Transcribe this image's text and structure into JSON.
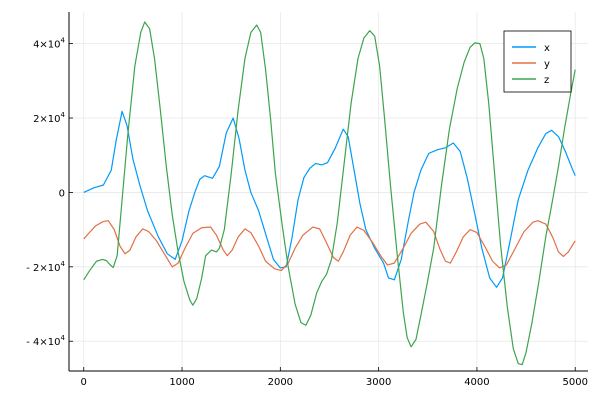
{
  "chart_data": {
    "type": "line",
    "title": "",
    "xlabel": "",
    "ylabel": "",
    "xlim": [
      -150,
      5130
    ],
    "ylim": [
      -48000,
      48500
    ],
    "grid": true,
    "legend_position": "top-right",
    "x_ticks": [
      {
        "value": 0,
        "label": "0"
      },
      {
        "value": 1000,
        "label": "1000"
      },
      {
        "value": 2000,
        "label": "2000"
      },
      {
        "value": 3000,
        "label": "3000"
      },
      {
        "value": 4000,
        "label": "4000"
      },
      {
        "value": 5000,
        "label": "5000"
      }
    ],
    "y_ticks": [
      {
        "value": -40000,
        "base": "- 4×10",
        "exp": "4"
      },
      {
        "value": -20000,
        "base": "- 2×10",
        "exp": "4"
      },
      {
        "value": 0,
        "base": "0",
        "exp": ""
      },
      {
        "value": 20000,
        "base": "2×10",
        "exp": "4"
      },
      {
        "value": 40000,
        "base": "4×10",
        "exp": "4"
      }
    ],
    "series": [
      {
        "name": "x",
        "color": "#009af9",
        "points": [
          [
            0,
            0
          ],
          [
            100,
            1200
          ],
          [
            200,
            2000
          ],
          [
            280,
            6000
          ],
          [
            330,
            14000
          ],
          [
            390,
            21800
          ],
          [
            440,
            18000
          ],
          [
            500,
            9000
          ],
          [
            570,
            2000
          ],
          [
            650,
            -5000
          ],
          [
            760,
            -12000
          ],
          [
            850,
            -16500
          ],
          [
            930,
            -18000
          ],
          [
            1000,
            -13000
          ],
          [
            1070,
            -5000
          ],
          [
            1130,
            0
          ],
          [
            1180,
            3500
          ],
          [
            1230,
            4500
          ],
          [
            1310,
            3800
          ],
          [
            1380,
            7000
          ],
          [
            1450,
            16000
          ],
          [
            1520,
            20000
          ],
          [
            1580,
            14500
          ],
          [
            1640,
            6000
          ],
          [
            1700,
            0
          ],
          [
            1780,
            -5000
          ],
          [
            1860,
            -12000
          ],
          [
            1930,
            -18000
          ],
          [
            2000,
            -20300
          ],
          [
            2060,
            -20000
          ],
          [
            2120,
            -12000
          ],
          [
            2180,
            -2000
          ],
          [
            2240,
            4000
          ],
          [
            2300,
            6500
          ],
          [
            2360,
            7800
          ],
          [
            2420,
            7400
          ],
          [
            2480,
            8000
          ],
          [
            2560,
            12000
          ],
          [
            2640,
            17000
          ],
          [
            2690,
            15000
          ],
          [
            2750,
            6000
          ],
          [
            2810,
            -3000
          ],
          [
            2870,
            -10000
          ],
          [
            2960,
            -15000
          ],
          [
            3050,
            -19000
          ],
          [
            3100,
            -23000
          ],
          [
            3160,
            -23500
          ],
          [
            3230,
            -18000
          ],
          [
            3300,
            -8000
          ],
          [
            3360,
            0
          ],
          [
            3430,
            6000
          ],
          [
            3510,
            10500
          ],
          [
            3600,
            11500
          ],
          [
            3680,
            12000
          ],
          [
            3760,
            13300
          ],
          [
            3830,
            11000
          ],
          [
            3900,
            4000
          ],
          [
            3980,
            -6000
          ],
          [
            4050,
            -15000
          ],
          [
            4130,
            -23000
          ],
          [
            4200,
            -25500
          ],
          [
            4260,
            -23000
          ],
          [
            4330,
            -14000
          ],
          [
            4420,
            -2000
          ],
          [
            4520,
            6000
          ],
          [
            4620,
            12000
          ],
          [
            4700,
            15800
          ],
          [
            4760,
            16700
          ],
          [
            4830,
            15000
          ],
          [
            4900,
            11000
          ],
          [
            4960,
            7000
          ],
          [
            5000,
            4500
          ]
        ]
      },
      {
        "name": "y",
        "color": "#e26f46",
        "points": [
          [
            0,
            -12500
          ],
          [
            50,
            -11000
          ],
          [
            120,
            -9000
          ],
          [
            200,
            -7800
          ],
          [
            250,
            -7600
          ],
          [
            310,
            -10000
          ],
          [
            370,
            -14500
          ],
          [
            420,
            -16500
          ],
          [
            470,
            -15500
          ],
          [
            530,
            -12000
          ],
          [
            600,
            -9800
          ],
          [
            660,
            -10500
          ],
          [
            740,
            -13000
          ],
          [
            820,
            -16500
          ],
          [
            900,
            -20000
          ],
          [
            960,
            -19000
          ],
          [
            1030,
            -15000
          ],
          [
            1110,
            -11000
          ],
          [
            1200,
            -9500
          ],
          [
            1290,
            -9300
          ],
          [
            1350,
            -11500
          ],
          [
            1420,
            -15500
          ],
          [
            1460,
            -17000
          ],
          [
            1510,
            -15500
          ],
          [
            1570,
            -12000
          ],
          [
            1640,
            -9800
          ],
          [
            1700,
            -10800
          ],
          [
            1780,
            -14500
          ],
          [
            1850,
            -18500
          ],
          [
            1940,
            -20500
          ],
          [
            2010,
            -21000
          ],
          [
            2080,
            -19000
          ],
          [
            2150,
            -15000
          ],
          [
            2230,
            -11500
          ],
          [
            2330,
            -9300
          ],
          [
            2400,
            -9800
          ],
          [
            2460,
            -13000
          ],
          [
            2540,
            -17500
          ],
          [
            2590,
            -18500
          ],
          [
            2640,
            -16000
          ],
          [
            2710,
            -11500
          ],
          [
            2780,
            -9300
          ],
          [
            2850,
            -10200
          ],
          [
            2940,
            -13500
          ],
          [
            3020,
            -17000
          ],
          [
            3090,
            -19500
          ],
          [
            3160,
            -19000
          ],
          [
            3250,
            -15000
          ],
          [
            3330,
            -11000
          ],
          [
            3420,
            -8500
          ],
          [
            3480,
            -8000
          ],
          [
            3560,
            -10500
          ],
          [
            3620,
            -15000
          ],
          [
            3680,
            -18500
          ],
          [
            3730,
            -19000
          ],
          [
            3790,
            -16000
          ],
          [
            3860,
            -12000
          ],
          [
            3930,
            -10000
          ],
          [
            4000,
            -10800
          ],
          [
            4080,
            -14500
          ],
          [
            4160,
            -18500
          ],
          [
            4230,
            -20300
          ],
          [
            4300,
            -19500
          ],
          [
            4390,
            -15000
          ],
          [
            4480,
            -10500
          ],
          [
            4570,
            -8000
          ],
          [
            4620,
            -7600
          ],
          [
            4700,
            -8500
          ],
          [
            4770,
            -12000
          ],
          [
            4830,
            -16000
          ],
          [
            4880,
            -17200
          ],
          [
            4930,
            -16000
          ],
          [
            5000,
            -13000
          ]
        ]
      },
      {
        "name": "z",
        "color": "#3da44d",
        "points": [
          [
            0,
            -23500
          ],
          [
            60,
            -21000
          ],
          [
            130,
            -18500
          ],
          [
            190,
            -18000
          ],
          [
            230,
            -18300
          ],
          [
            270,
            -19500
          ],
          [
            300,
            -20200
          ],
          [
            340,
            -17000
          ],
          [
            390,
            -2000
          ],
          [
            450,
            16000
          ],
          [
            520,
            34000
          ],
          [
            580,
            43000
          ],
          [
            620,
            45800
          ],
          [
            670,
            44000
          ],
          [
            720,
            36000
          ],
          [
            780,
            22000
          ],
          [
            840,
            7000
          ],
          [
            900,
            -6000
          ],
          [
            960,
            -16000
          ],
          [
            1020,
            -24000
          ],
          [
            1080,
            -29000
          ],
          [
            1110,
            -30300
          ],
          [
            1150,
            -28500
          ],
          [
            1200,
            -23000
          ],
          [
            1240,
            -17000
          ],
          [
            1300,
            -15500
          ],
          [
            1350,
            -16000
          ],
          [
            1380,
            -15000
          ],
          [
            1430,
            -10000
          ],
          [
            1500,
            5000
          ],
          [
            1570,
            22000
          ],
          [
            1640,
            36000
          ],
          [
            1700,
            43000
          ],
          [
            1760,
            45000
          ],
          [
            1800,
            43000
          ],
          [
            1850,
            33000
          ],
          [
            1900,
            20000
          ],
          [
            1950,
            5000
          ],
          [
            2020,
            -9000
          ],
          [
            2080,
            -20000
          ],
          [
            2150,
            -30000
          ],
          [
            2210,
            -35000
          ],
          [
            2260,
            -35700
          ],
          [
            2310,
            -33000
          ],
          [
            2370,
            -27000
          ],
          [
            2420,
            -24000
          ],
          [
            2470,
            -22000
          ],
          [
            2520,
            -18000
          ],
          [
            2580,
            -8000
          ],
          [
            2650,
            8000
          ],
          [
            2720,
            24000
          ],
          [
            2790,
            36000
          ],
          [
            2850,
            41500
          ],
          [
            2910,
            43500
          ],
          [
            2960,
            42000
          ],
          [
            3010,
            34000
          ],
          [
            3060,
            20000
          ],
          [
            3120,
            2000
          ],
          [
            3190,
            -17000
          ],
          [
            3250,
            -32000
          ],
          [
            3290,
            -39000
          ],
          [
            3330,
            -41500
          ],
          [
            3380,
            -39500
          ],
          [
            3430,
            -33000
          ],
          [
            3490,
            -25000
          ],
          [
            3560,
            -15000
          ],
          [
            3640,
            2000
          ],
          [
            3720,
            17000
          ],
          [
            3800,
            28000
          ],
          [
            3870,
            35000
          ],
          [
            3930,
            39000
          ],
          [
            3980,
            40200
          ],
          [
            4030,
            40000
          ],
          [
            4070,
            36000
          ],
          [
            4120,
            24000
          ],
          [
            4180,
            5000
          ],
          [
            4240,
            -14000
          ],
          [
            4310,
            -31000
          ],
          [
            4370,
            -42000
          ],
          [
            4420,
            -46000
          ],
          [
            4460,
            -46300
          ],
          [
            4500,
            -43000
          ],
          [
            4560,
            -35000
          ],
          [
            4630,
            -24000
          ],
          [
            4700,
            -12000
          ],
          [
            4770,
            -2000
          ],
          [
            4830,
            7000
          ],
          [
            4890,
            17000
          ],
          [
            4950,
            26000
          ],
          [
            5000,
            33000
          ]
        ]
      }
    ]
  }
}
